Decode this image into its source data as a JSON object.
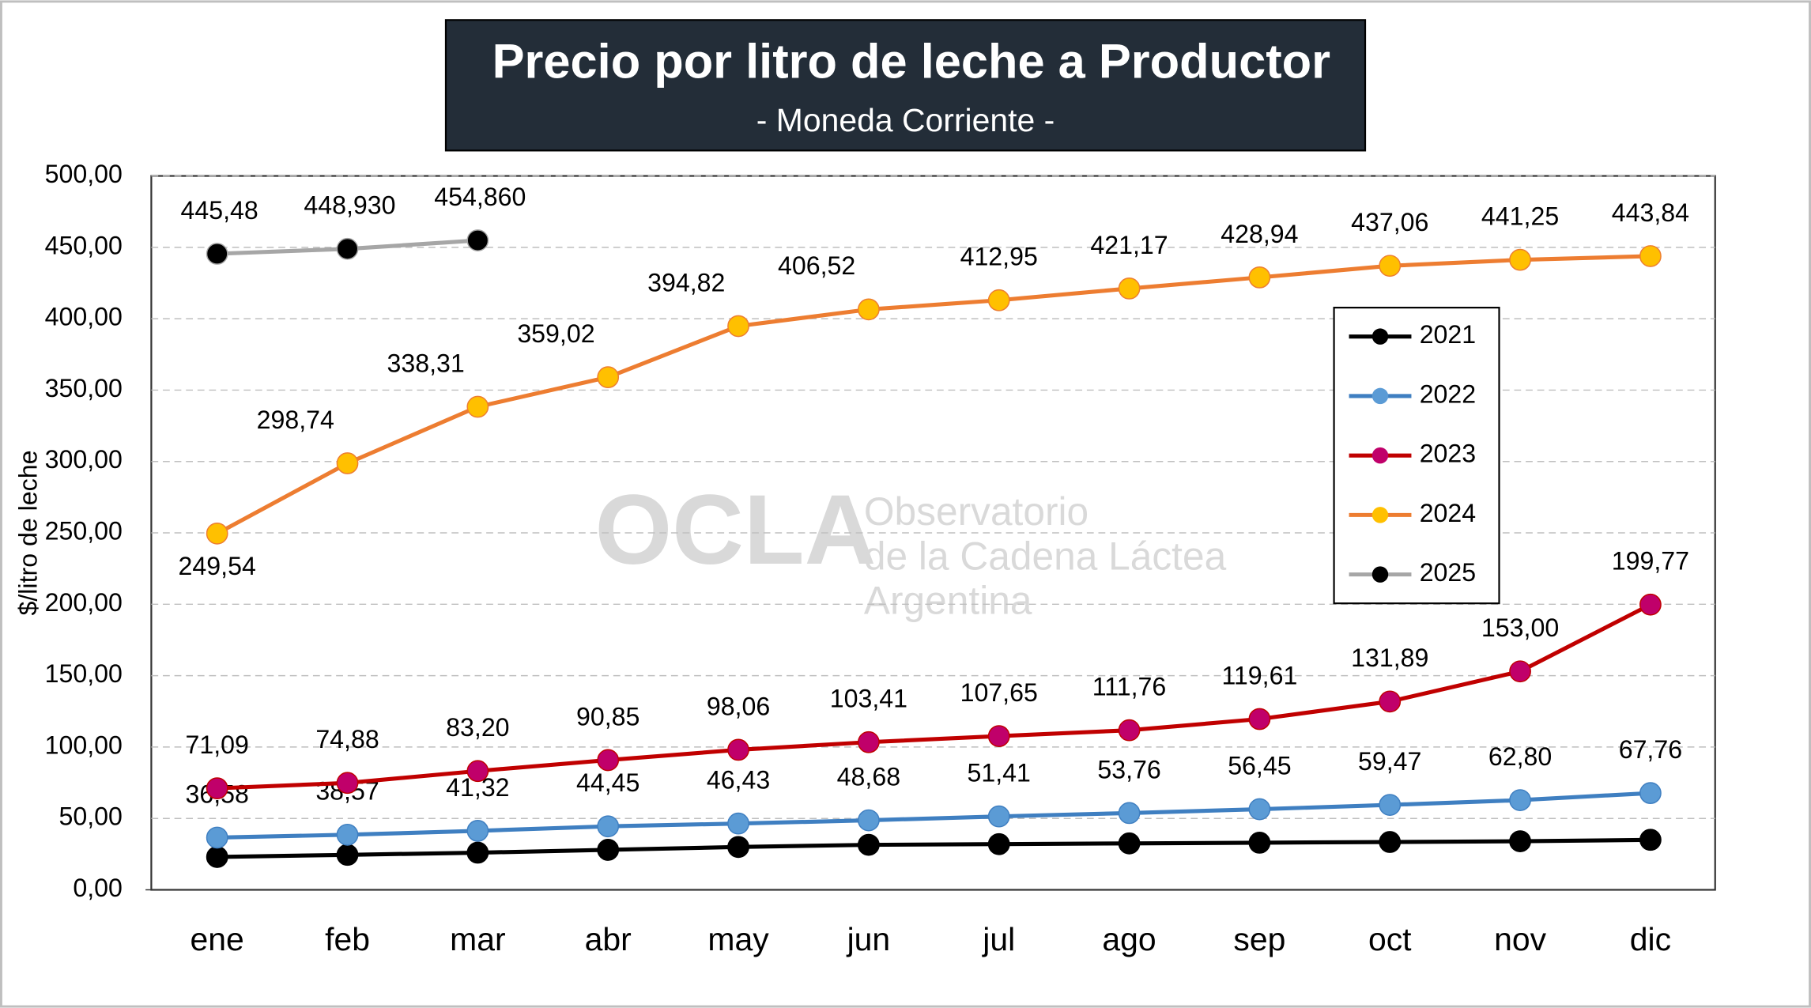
{
  "chart_data": {
    "type": "line",
    "title": "Precio por litro de leche a Productor",
    "subtitle": "- Moneda Corriente -",
    "y_label": "$/litro de leche",
    "watermark": [
      "OCLA",
      "Observatorio",
      "de la Cadena Láctea",
      "Argentina"
    ],
    "categories": [
      "ene",
      "feb",
      "mar",
      "abr",
      "may",
      "jun",
      "jul",
      "ago",
      "sep",
      "oct",
      "nov",
      "dic"
    ],
    "ylim": [
      0,
      500
    ],
    "yticks": [
      {
        "value": 0,
        "label": "0,00"
      },
      {
        "value": 50,
        "label": "50,00"
      },
      {
        "value": 100,
        "label": "100,00"
      },
      {
        "value": 150,
        "label": "150,00"
      },
      {
        "value": 200,
        "label": "200,00"
      },
      {
        "value": 250,
        "label": "250,00"
      },
      {
        "value": 300,
        "label": "300,00"
      },
      {
        "value": 350,
        "label": "350,00"
      },
      {
        "value": 400,
        "label": "400,00"
      },
      {
        "value": 450,
        "label": "450,00"
      },
      {
        "value": 500,
        "label": "500,00"
      }
    ],
    "grid": true,
    "legend": "right",
    "series": [
      {
        "name": "2021",
        "color": "#000000",
        "marker_color": "#000000",
        "values": [
          23,
          24.5,
          26,
          28,
          30,
          31.5,
          32,
          32.5,
          33,
          33.5,
          34,
          35
        ]
      },
      {
        "name": "2022",
        "color": "#3f7fc1",
        "marker_color": "#5b9bd5",
        "values": [
          36.58,
          38.57,
          41.32,
          44.45,
          46.43,
          48.68,
          51.41,
          53.76,
          56.45,
          59.47,
          62.8,
          67.76
        ],
        "value_labels": [
          "36,58",
          "38,57",
          "41,32",
          "44,45",
          "46,43",
          "48,68",
          "51,41",
          "53,76",
          "56,45",
          "59,47",
          "62,80",
          "67,76"
        ]
      },
      {
        "name": "2023",
        "color": "#c00000",
        "marker_color": "#c0006a",
        "values": [
          71.09,
          74.88,
          83.2,
          90.85,
          98.06,
          103.41,
          107.65,
          111.76,
          119.61,
          131.89,
          153,
          199.77
        ],
        "value_labels": [
          "71,09",
          "74,88",
          "83,20",
          "90,85",
          "98,06",
          "103,41",
          "107,65",
          "111,76",
          "119,61",
          "131,89",
          "153,00",
          "199,77"
        ]
      },
      {
        "name": "2024",
        "color": "#ed7d31",
        "marker_color": "#ffc000",
        "values": [
          249.54,
          298.74,
          338.31,
          359.02,
          394.82,
          406.52,
          412.95,
          421.17,
          428.94,
          437.06,
          441.25,
          443.84
        ],
        "value_labels": [
          "249,54",
          "298,74",
          "338,31",
          "359,02",
          "394,82",
          "406,52",
          "412,95",
          "421,17",
          "428,94",
          "437,06",
          "441,25",
          "443,84"
        ]
      },
      {
        "name": "2025",
        "color": "#a6a6a6",
        "marker_color": "#000000",
        "values": [
          445.48,
          448.93,
          454.86,
          null,
          null,
          null,
          null,
          null,
          null,
          null,
          null,
          null
        ],
        "value_labels": [
          "445,48",
          "448,930",
          "454,860",
          null,
          null,
          null,
          null,
          null,
          null,
          null,
          null,
          null
        ]
      }
    ]
  }
}
